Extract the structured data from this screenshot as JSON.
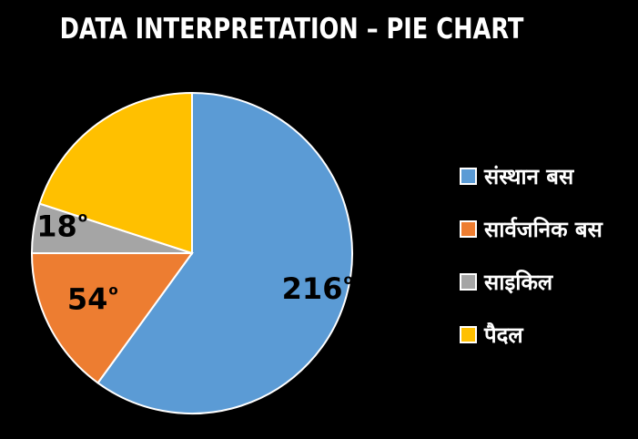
{
  "chart_data": {
    "type": "pie",
    "title": "DATA INTERPRETATION – PIE CHART",
    "unit": "°",
    "slices": [
      {
        "name": "संस्थान बस",
        "value": 216,
        "label": "216",
        "color": "#5B9BD5"
      },
      {
        "name": "सार्वजनिक बस",
        "value": 54,
        "label": "54",
        "color": "#ED7D31"
      },
      {
        "name": "साइकिल",
        "value": 18,
        "label": "18",
        "color": "#A5A5A5"
      },
      {
        "name": "पैदल",
        "value": 72,
        "label": "",
        "color": "#FFC000"
      }
    ],
    "legend_position": "right"
  }
}
